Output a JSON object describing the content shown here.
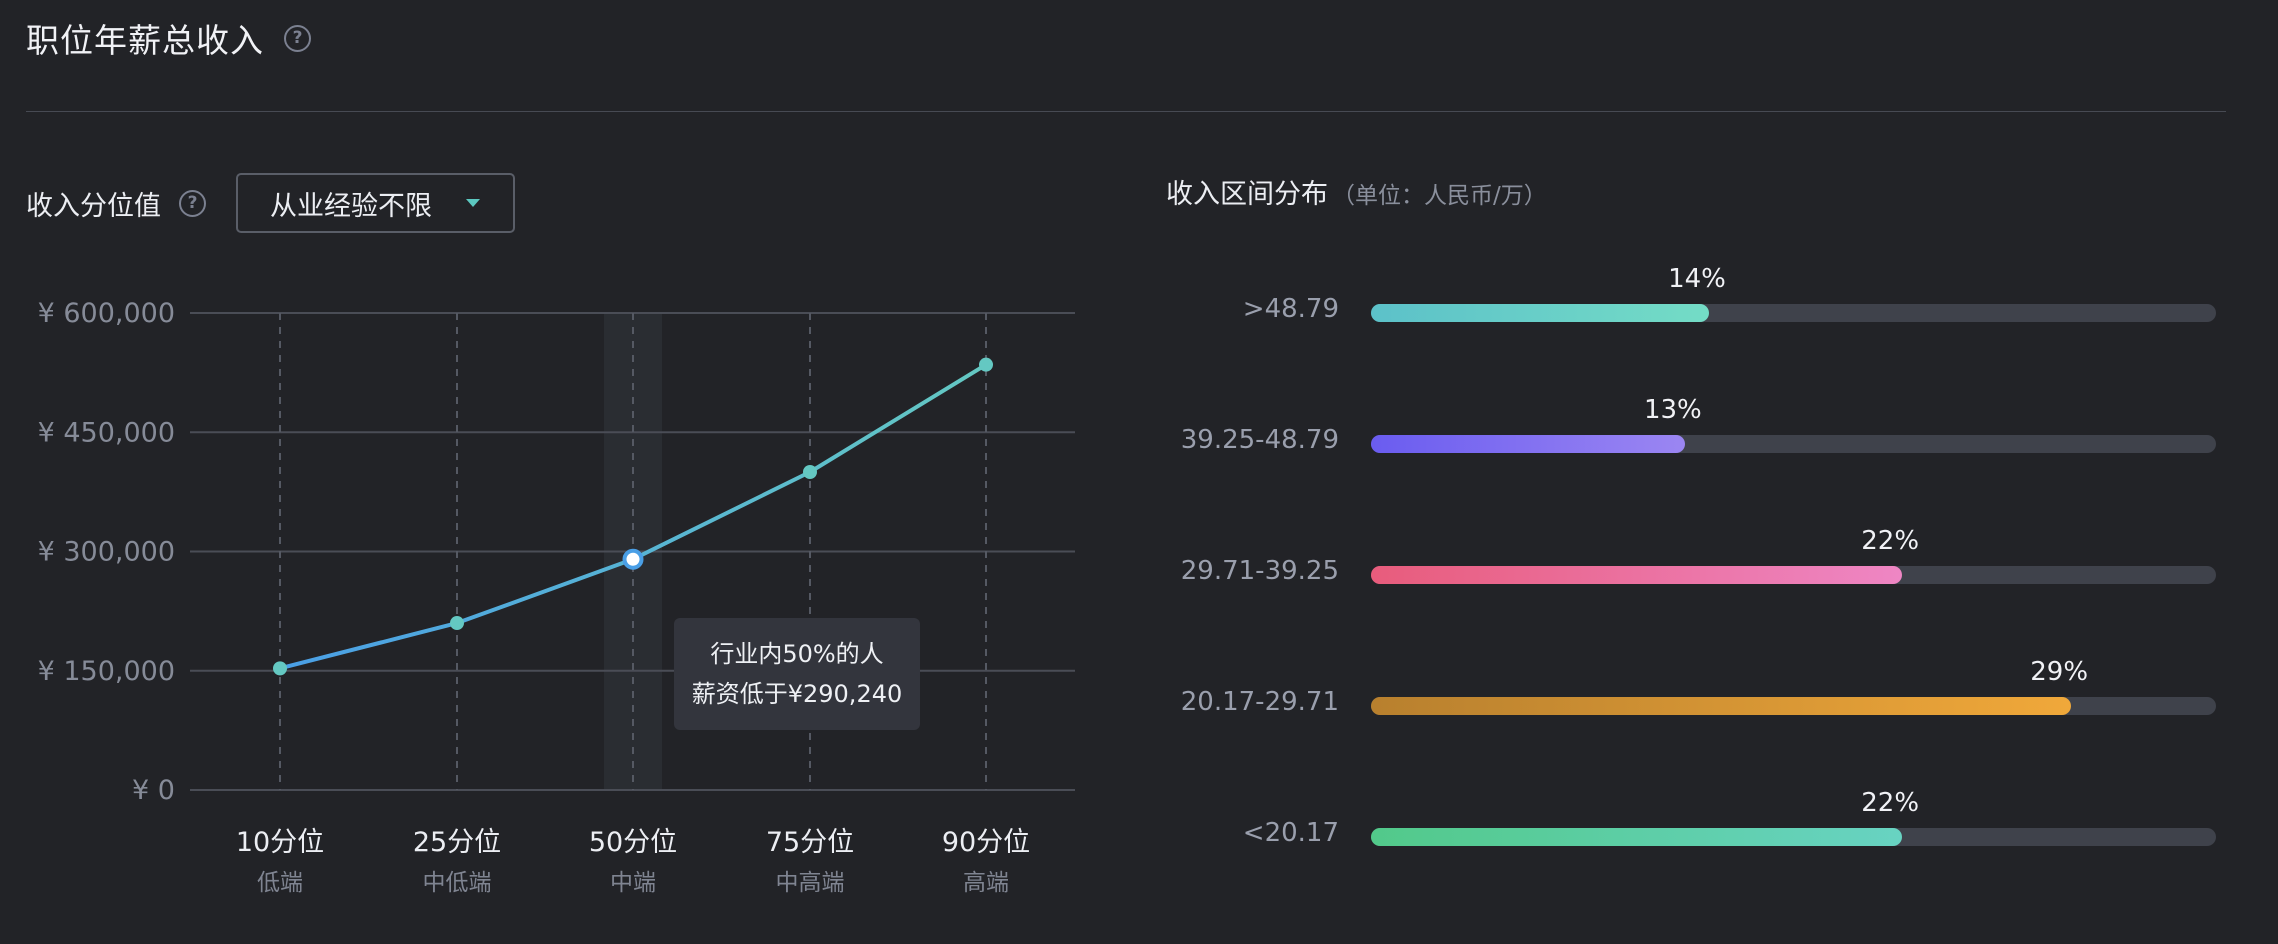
{
  "header": {
    "title": "职位年薪总收入",
    "help": "?"
  },
  "left_panel": {
    "label": "收入分位值",
    "help": "?",
    "dropdown": {
      "selected": "从业经验不限"
    }
  },
  "tooltip": {
    "line1": "行业内50%的人",
    "line2": "薪资低于¥290,240"
  },
  "right_panel": {
    "title": "收入区间分布",
    "unit": "（单位：人民币/万）"
  },
  "colors": {
    "line_start": "#4a9fe6",
    "line_end": "#64c8c2",
    "point": "#64c8c2",
    "teal_start": "#5cc1c9",
    "teal_end": "#74dcc6",
    "purple_start": "#6a5cf0",
    "purple_end": "#9b86f2",
    "pink_start": "#e85c7c",
    "pink_end": "#ee86c4",
    "orange_start": "#b8802e",
    "orange_end": "#f0a83a",
    "green_start": "#52c98a",
    "green_end": "#68d3c2"
  },
  "chart_data": [
    {
      "type": "line",
      "categories": [
        "10分位",
        "25分位",
        "50分位",
        "75分位",
        "90分位"
      ],
      "subcategories": [
        "低端",
        "中低端",
        "中端",
        "中高端",
        "高端"
      ],
      "values": [
        153000,
        210000,
        290240,
        400000,
        535000
      ],
      "y_ticks": [
        "¥ 0",
        "¥ 150,000",
        "¥ 300,000",
        "¥ 450,000",
        "¥ 600,000"
      ],
      "ylim": [
        0,
        600000
      ],
      "highlight_index": 2,
      "grid": true
    },
    {
      "type": "bar",
      "orientation": "horizontal",
      "categories": [
        ">48.79",
        "39.25-48.79",
        "29.71-39.25",
        "20.17-29.71",
        "<20.17"
      ],
      "values": [
        14,
        13,
        22,
        29,
        22
      ],
      "value_labels": [
        "14%",
        "13%",
        "22%",
        "29%",
        "22%"
      ],
      "xlim": [
        0,
        35
      ]
    }
  ]
}
